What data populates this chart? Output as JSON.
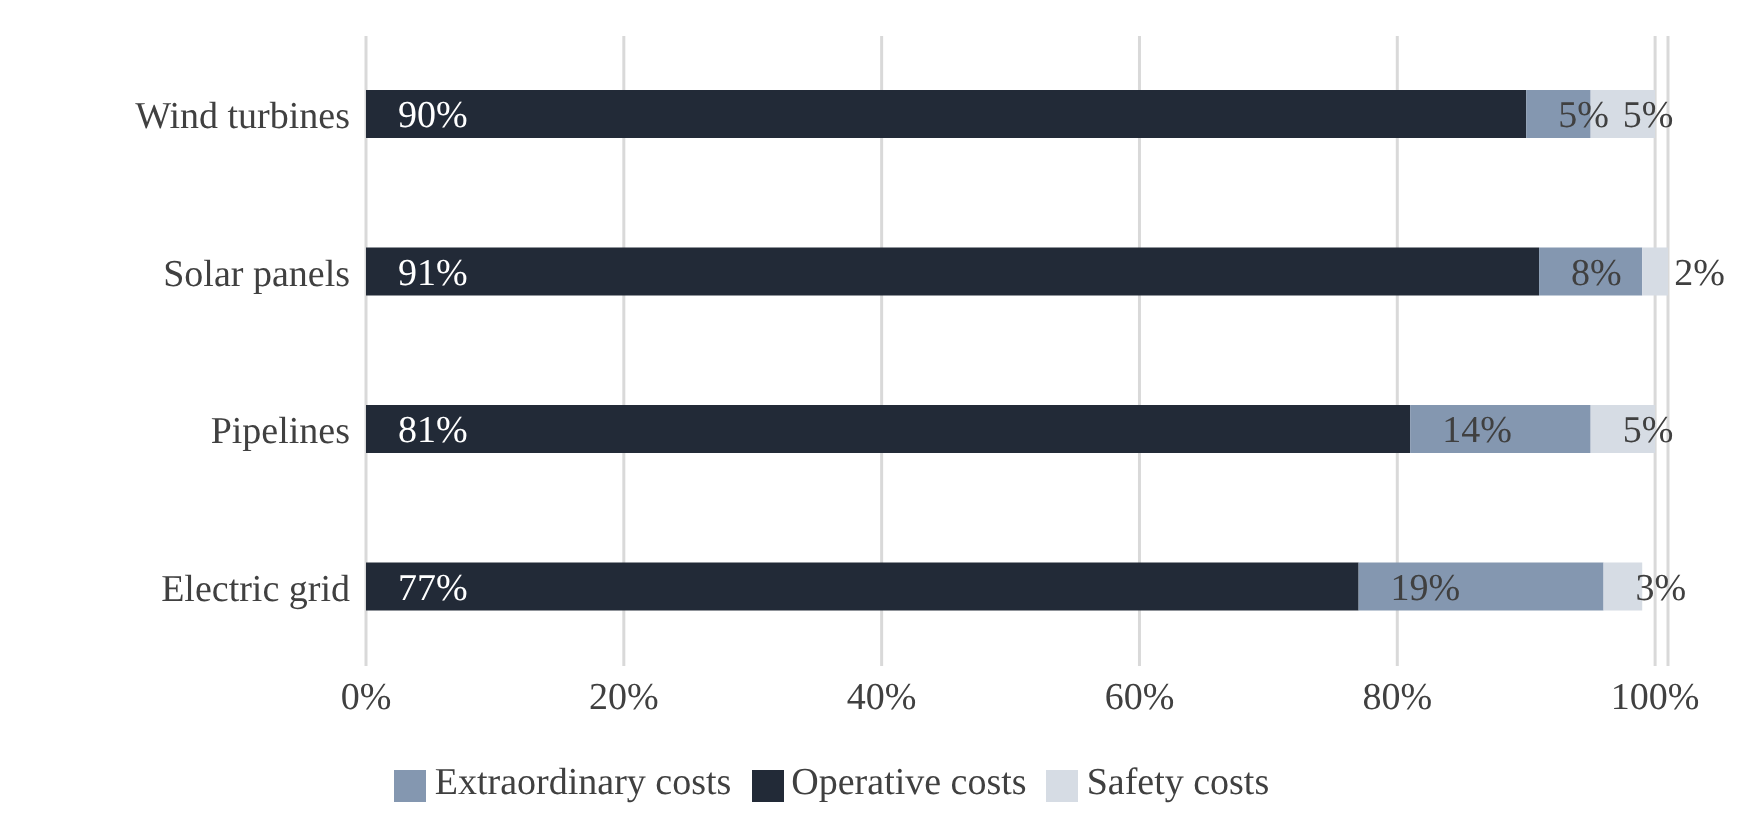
{
  "chart_data": {
    "type": "bar",
    "orientation": "horizontal",
    "stacked": true,
    "categories": [
      "Wind turbines",
      "Solar panels",
      "Pipelines",
      "Electric grid"
    ],
    "series": [
      {
        "name": "Operative costs",
        "color": "#222a37",
        "values": [
          90,
          91,
          81,
          77
        ],
        "value_labels": [
          "90%",
          "91%",
          "81%",
          "77%"
        ]
      },
      {
        "name": "Extraordinary costs",
        "color": "#8497b0",
        "values": [
          5,
          8,
          14,
          19
        ],
        "value_labels": [
          "5%",
          "8%",
          "14%",
          "19%"
        ]
      },
      {
        "name": "Safety costs",
        "color": "#d6dce4",
        "values": [
          5,
          2,
          5,
          3
        ],
        "value_labels": [
          "5%",
          "2%",
          "5%",
          "3%"
        ]
      }
    ],
    "xlim": [
      0,
      101
    ],
    "xticks": [
      {
        "value": 0,
        "label": "0%"
      },
      {
        "value": 20,
        "label": "20%"
      },
      {
        "value": 40,
        "label": "40%"
      },
      {
        "value": 60,
        "label": "60%"
      },
      {
        "value": 80,
        "label": "80%"
      },
      {
        "value": 100,
        "label": "100%"
      }
    ],
    "grid": "x",
    "legend": "bottom"
  }
}
